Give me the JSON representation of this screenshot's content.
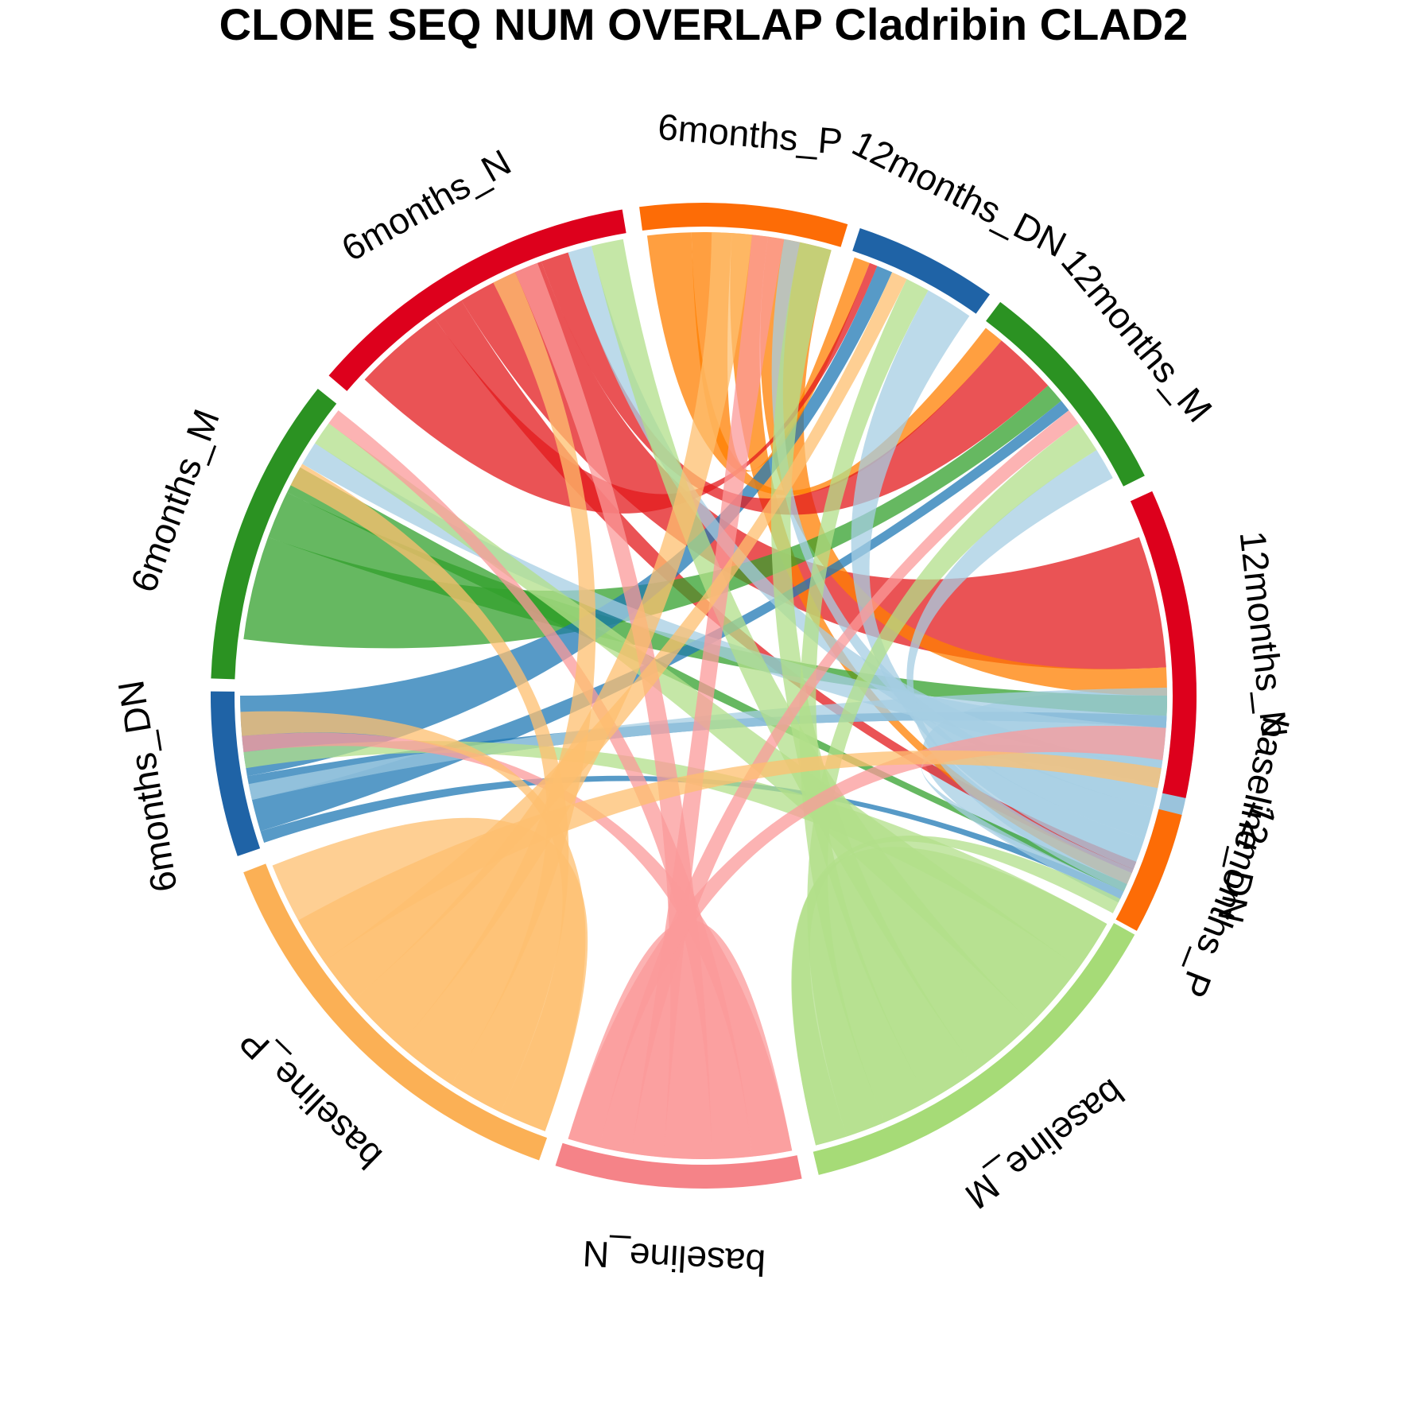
{
  "title": "CLONE SEQ NUM OVERLAP Cladribin CLAD2",
  "diagram": {
    "type": "chord",
    "sectors": [
      {
        "id": "baseline_DN",
        "label": "baseline_DN",
        "color": "#9ac3dc",
        "start_deg": 358.5,
        "end_deg": 387.0
      },
      {
        "id": "baseline_M",
        "label": "baseline_M",
        "color": "#a6db77",
        "start_deg": 389.0,
        "end_deg": 436.5
      },
      {
        "id": "baseline_N",
        "label": "baseline_N",
        "color": "#f58388",
        "start_deg": 438.5,
        "end_deg": 467.5
      },
      {
        "id": "baseline_P",
        "label": "baseline_P",
        "color": "#fbb055",
        "start_deg": 469.5,
        "end_deg": 519.0
      },
      {
        "id": "6months_DN",
        "label": "6months_DN",
        "color": "#1f63a6",
        "start_deg": 521.0,
        "end_deg": 540.5
      },
      {
        "id": "6months_M",
        "label": "6months_M",
        "color": "#2b9222",
        "start_deg": 542.0,
        "end_deg": 578.5
      },
      {
        "id": "6months_N",
        "label": "6months_N",
        "color": "#dd001c",
        "start_deg": 580.5,
        "end_deg": 620.5
      },
      {
        "id": "6months_P",
        "label": "6months_P",
        "color": "#fd6c06",
        "start_deg": 622.5,
        "end_deg": 647.0
      },
      {
        "id": "12months_DN",
        "label": "12months_DN",
        "color": "#1f63a6",
        "start_deg": 648.5,
        "end_deg": 665.5
      },
      {
        "id": "12months_M",
        "label": "12months_M",
        "color": "#2b9222",
        "start_deg": 667.0,
        "end_deg": 693.5
      },
      {
        "id": "12months_N",
        "label": "12months_N",
        "color": "#dd001c",
        "start_deg": 695.5,
        "end_deg": 732.0
      },
      {
        "id": "12months_P",
        "label": "12months_P",
        "color": "#fd6c06",
        "start_deg": 734.0,
        "end_deg": 748.5
      }
    ],
    "links": [
      {
        "a_sector": "baseline_P",
        "a_from": 470,
        "a_to": 511,
        "b_sector": "baseline_P",
        "b_from": 511,
        "b_to": 518.5,
        "color": "#fdbf6f"
      },
      {
        "a_sector": "baseline_N",
        "a_from": 439,
        "a_to": 451,
        "b_sector": "baseline_N",
        "b_from": 451,
        "b_to": 467,
        "color": "#fb9a99"
      },
      {
        "a_sector": "baseline_M",
        "a_from": 389.5,
        "a_to": 414,
        "b_sector": "baseline_M",
        "b_from": 414,
        "b_to": 436,
        "color": "#b2df8a"
      },
      {
        "a_sector": "baseline_DN",
        "a_from": 359,
        "a_to": 373,
        "b_sector": "baseline_DN",
        "b_from": 373,
        "b_to": 386.5,
        "color": "#a6cee3"
      },
      {
        "a_sector": "6months_N",
        "a_from": 598.5,
        "a_to": 609.5,
        "b_sector": "12months_N",
        "b_from": 700,
        "b_to": 716.5,
        "color": "#e31a1c"
      },
      {
        "a_sector": "6months_N",
        "a_from": 594.5,
        "a_to": 598.5,
        "b_sector": "12months_P",
        "b_from": 741,
        "b_to": 742.5,
        "color": "#e31a1c"
      },
      {
        "a_sector": "6months_P",
        "a_from": 638,
        "a_to": 646,
        "b_sector": "12months_N",
        "b_from": 716.5,
        "b_to": 720,
        "color": "#ff7f00"
      },
      {
        "a_sector": "6months_P",
        "a_from": 633.5,
        "a_to": 638,
        "b_sector": "12months_P",
        "b_from": 742.5,
        "b_to": 744,
        "color": "#ff7f00"
      },
      {
        "a_sector": "6months_M",
        "a_from": 547,
        "a_to": 560,
        "b_sector": "12months_M",
        "b_from": 678,
        "b_to": 680.5,
        "color": "#33a02c"
      },
      {
        "a_sector": "6months_M",
        "a_from": 560,
        "a_to": 566,
        "b_sector": "12months_N",
        "b_from": 720,
        "b_to": 722.5,
        "color": "#33a02c"
      },
      {
        "a_sector": "6months_M",
        "a_from": 566,
        "a_to": 569.5,
        "b_sector": "12months_P",
        "b_from": 744,
        "b_to": 745,
        "color": "#33a02c"
      },
      {
        "a_sector": "6months_DN",
        "a_from": 530,
        "a_to": 540,
        "b_sector": "12months_DN",
        "b_from": 652,
        "b_to": 654,
        "color": "#1f78b4"
      },
      {
        "a_sector": "6months_DN",
        "a_from": 523,
        "a_to": 527,
        "b_sector": "12months_M",
        "b_from": 680.5,
        "b_to": 682,
        "color": "#1f78b4"
      },
      {
        "a_sector": "6months_DN",
        "a_from": 527,
        "a_to": 530,
        "b_sector": "12months_N",
        "b_from": 722.5,
        "b_to": 724,
        "color": "#1f78b4"
      },
      {
        "a_sector": "6months_DN",
        "a_from": 521.5,
        "a_to": 523,
        "b_sector": "12months_P",
        "b_from": 745,
        "b_to": 746,
        "color": "#1f78b4"
      },
      {
        "a_sector": "6months_P",
        "a_from": 628.5,
        "a_to": 633.5,
        "b_sector": "12months_DN",
        "b_from": 649,
        "b_to": 651,
        "color": "#ff7f00"
      },
      {
        "a_sector": "6months_N",
        "a_from": 583,
        "a_to": 594.5,
        "b_sector": "12months_DN",
        "b_from": 651,
        "b_to": 652,
        "color": "#e31a1c"
      },
      {
        "a_sector": "6months_P",
        "a_from": 623,
        "a_to": 628.5,
        "b_sector": "12months_M",
        "b_from": 667.5,
        "b_to": 670,
        "color": "#ff7f00"
      },
      {
        "a_sector": "6months_N",
        "a_from": 609.5,
        "a_to": 613,
        "b_sector": "12months_M",
        "b_from": 670,
        "b_to": 678,
        "color": "#e31a1c"
      },
      {
        "a_sector": "baseline_DN",
        "a_from": 359,
        "a_to": 364,
        "b_sector": "6months_DN",
        "b_from": 527,
        "b_to": 529,
        "color": "#a6cee3"
      },
      {
        "a_sector": "baseline_DN",
        "a_from": 364,
        "a_to": 369,
        "b_sector": "6months_M",
        "b_from": 570,
        "b_to": 573,
        "color": "#a6cee3"
      },
      {
        "a_sector": "baseline_DN",
        "a_from": 369,
        "a_to": 374,
        "b_sector": "6months_N",
        "b_from": 613,
        "b_to": 616,
        "color": "#a6cee3"
      },
      {
        "a_sector": "baseline_DN",
        "a_from": 374,
        "a_to": 378,
        "b_sector": "6months_P",
        "b_from": 640,
        "b_to": 642,
        "color": "#a6cee3"
      },
      {
        "a_sector": "baseline_DN",
        "a_from": 378,
        "a_to": 382,
        "b_sector": "12months_DN",
        "b_from": 659,
        "b_to": 665,
        "color": "#a6cee3"
      },
      {
        "a_sector": "baseline_DN",
        "a_from": 382,
        "a_to": 385,
        "b_sector": "12months_M",
        "b_from": 688,
        "b_to": 692,
        "color": "#a6cee3"
      },
      {
        "a_sector": "baseline_DN",
        "a_from": 385,
        "a_to": 386.5,
        "b_sector": "12months_N",
        "b_from": 728,
        "b_to": 731,
        "color": "#a6cee3"
      },
      {
        "a_sector": "baseline_M",
        "a_from": 389.5,
        "a_to": 396,
        "b_sector": "6months_DN",
        "b_from": 531,
        "b_to": 533,
        "color": "#b2df8a"
      },
      {
        "a_sector": "baseline_M",
        "a_from": 396,
        "a_to": 405,
        "b_sector": "6months_M",
        "b_from": 573,
        "b_to": 576,
        "color": "#b2df8a"
      },
      {
        "a_sector": "baseline_M",
        "a_from": 405,
        "a_to": 414,
        "b_sector": "6months_N",
        "b_from": 616,
        "b_to": 620,
        "color": "#b2df8a"
      },
      {
        "a_sector": "baseline_M",
        "a_from": 414,
        "a_to": 421,
        "b_sector": "6months_P",
        "b_from": 642,
        "b_to": 646,
        "color": "#b2df8a"
      },
      {
        "a_sector": "baseline_M",
        "a_from": 421,
        "a_to": 427,
        "b_sector": "12months_DN",
        "b_from": 656,
        "b_to": 659,
        "color": "#b2df8a"
      },
      {
        "a_sector": "baseline_M",
        "a_from": 427,
        "a_to": 432,
        "b_sector": "12months_M",
        "b_from": 684,
        "b_to": 688,
        "color": "#b2df8a"
      },
      {
        "a_sector": "baseline_M",
        "a_from": 432,
        "a_to": 436,
        "b_sector": "12months_P",
        "b_from": 746,
        "b_to": 748,
        "color": "#b2df8a"
      },
      {
        "a_sector": "baseline_N",
        "a_from": 439,
        "a_to": 444,
        "b_sector": "6months_DN",
        "b_from": 533,
        "b_to": 535,
        "color": "#fb9a99"
      },
      {
        "a_sector": "baseline_N",
        "a_from": 444,
        "a_to": 449,
        "b_sector": "6months_M",
        "b_from": 576,
        "b_to": 578,
        "color": "#fb9a99"
      },
      {
        "a_sector": "baseline_N",
        "a_from": 449,
        "a_to": 455,
        "b_sector": "6months_N",
        "b_from": 606,
        "b_to": 609,
        "color": "#fb9a99"
      },
      {
        "a_sector": "baseline_N",
        "a_from": 455,
        "a_to": 459,
        "b_sector": "6months_P",
        "b_from": 636,
        "b_to": 640,
        "color": "#fb9a99"
      },
      {
        "a_sector": "baseline_N",
        "a_from": 459,
        "a_to": 463,
        "b_sector": "12months_M",
        "b_from": 682,
        "b_to": 684,
        "color": "#fb9a99"
      },
      {
        "a_sector": "baseline_N",
        "a_from": 463,
        "a_to": 467,
        "b_sector": "12months_N",
        "b_from": 724,
        "b_to": 728,
        "color": "#fb9a99"
      },
      {
        "a_sector": "baseline_P",
        "a_from": 470,
        "a_to": 476,
        "b_sector": "6months_DN",
        "b_from": 535,
        "b_to": 538,
        "color": "#fdbf6f"
      },
      {
        "a_sector": "baseline_P",
        "a_from": 476,
        "a_to": 483,
        "b_sector": "6months_M",
        "b_from": 567,
        "b_to": 570,
        "color": "#fdbf6f"
      },
      {
        "a_sector": "baseline_P",
        "a_from": 483,
        "a_to": 491,
        "b_sector": "6months_N",
        "b_from": 603,
        "b_to": 606,
        "color": "#fdbf6f"
      },
      {
        "a_sector": "baseline_P",
        "a_from": 491,
        "a_to": 499,
        "b_sector": "6months_P",
        "b_from": 631,
        "b_to": 636,
        "color": "#fdbf6f"
      },
      {
        "a_sector": "baseline_P",
        "a_from": 499,
        "a_to": 505,
        "b_sector": "12months_DN",
        "b_from": 654,
        "b_to": 656,
        "color": "#fdbf6f"
      },
      {
        "a_sector": "baseline_P",
        "a_from": 505,
        "a_to": 511,
        "b_sector": "12months_N",
        "b_from": 729,
        "b_to": 731.5,
        "color": "#fdbf6f"
      }
    ]
  }
}
